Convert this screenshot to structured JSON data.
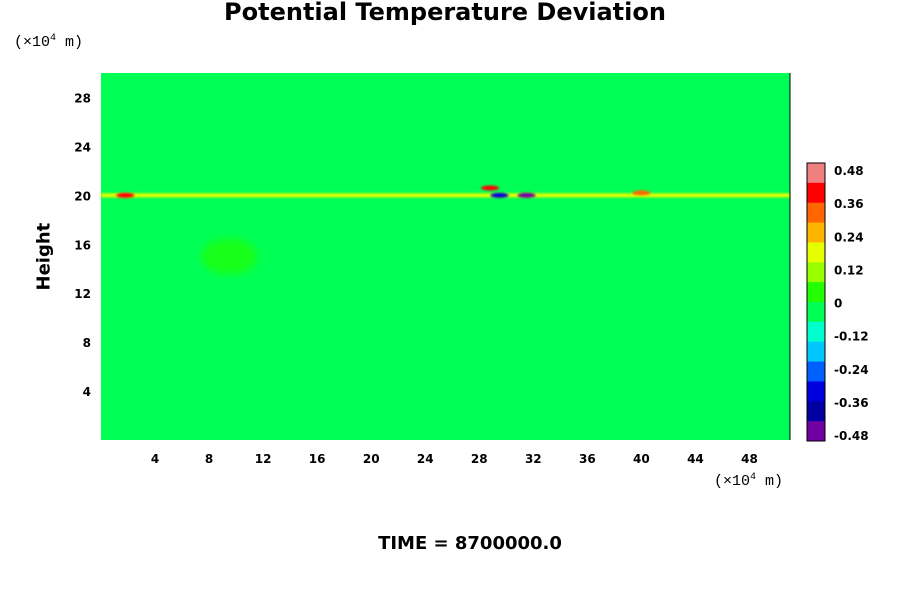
{
  "chart_data": {
    "type": "heatmap",
    "title": "Potential Temperature Deviation",
    "ylabel": "Height",
    "x_unit": "(×10",
    "y_unit": "(×10",
    "unit_exp": "4",
    "unit_tail": " m)",
    "footer": "TIME = 8700000.0",
    "xlim": [
      0,
      51
    ],
    "ylim": [
      0,
      30
    ],
    "x_ticks": [
      4,
      8,
      12,
      16,
      20,
      24,
      28,
      32,
      36,
      40,
      44,
      48
    ],
    "x_tick_labels": [
      "4",
      "8",
      "12",
      "16",
      "20",
      "24",
      "28",
      "32",
      "36",
      "40",
      "44",
      "48"
    ],
    "y_ticks": [
      4,
      8,
      12,
      16,
      20,
      24,
      28
    ],
    "y_tick_labels": [
      "4",
      "8",
      "12",
      "16",
      "20",
      "24",
      "28"
    ],
    "colorbar": {
      "range": [
        -0.48,
        0.48
      ],
      "ticks": [
        0.48,
        0.36,
        0.24,
        0.12,
        0,
        -0.12,
        -0.24,
        -0.36,
        -0.48
      ],
      "tick_labels": [
        "0.48",
        "0.36",
        "0.24",
        "0.12",
        "0",
        "-0.12",
        "-0.24",
        "-0.36",
        "-0.48"
      ],
      "colors": [
        "#f08080",
        "#ff0000",
        "#ff6600",
        "#ffb400",
        "#e6ff00",
        "#99ff00",
        "#22ff00",
        "#00ff55",
        "#00ffcc",
        "#00c8ff",
        "#0060ff",
        "#0000dd",
        "#0000a0",
        "#7000a0"
      ]
    },
    "background_value": 0.0,
    "features": [
      {
        "kind": "band",
        "y": 20.0,
        "x_range": [
          0,
          51
        ],
        "value": 0.15,
        "note": "thin warm layer"
      },
      {
        "kind": "blob",
        "x": 1.8,
        "y": 20.0,
        "value": 0.4
      },
      {
        "kind": "blob",
        "x": 29.5,
        "y": 20.0,
        "value": -0.3
      },
      {
        "kind": "blob",
        "x": 31.5,
        "y": 20.0,
        "value": -0.45
      },
      {
        "kind": "blob",
        "x": 28.8,
        "y": 20.6,
        "value": 0.35
      },
      {
        "kind": "blob",
        "x": 40.0,
        "y": 20.2,
        "value": 0.3
      },
      {
        "kind": "blob",
        "x": 9.5,
        "y": 15.0,
        "value": 0.04
      },
      {
        "kind": "blob",
        "x": 17.0,
        "y": 6.5,
        "value": -0.04
      },
      {
        "kind": "blob",
        "x": 32.0,
        "y": 6.0,
        "value": -0.04
      }
    ]
  }
}
